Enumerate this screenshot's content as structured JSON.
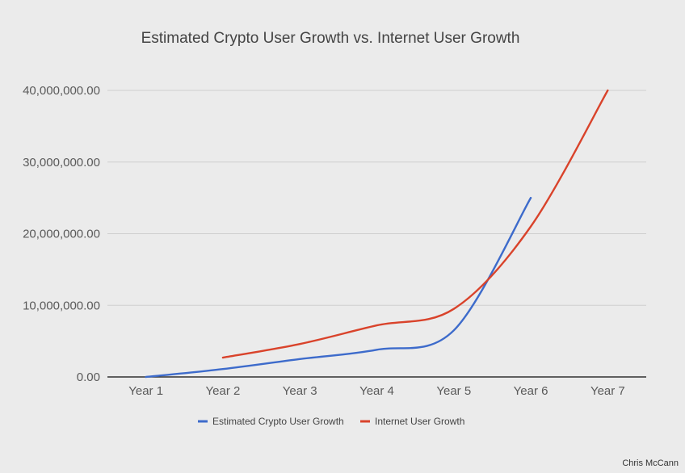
{
  "chart_data": {
    "type": "line",
    "title": "Estimated Crypto User Growth vs. Internet User Growth",
    "xlabel": "",
    "ylabel": "",
    "categories": [
      "Year 1",
      "Year 2",
      "Year 3",
      "Year 4",
      "Year 5",
      "Year 6",
      "Year 7"
    ],
    "y_tick_labels": [
      "0.00",
      "10,000,000.00",
      "20,000,000.00",
      "30,000,000.00",
      "40,000,000.00"
    ],
    "ylim": [
      0,
      40000000
    ],
    "grid": true,
    "legend_position": "bottom",
    "smooth": true,
    "series": [
      {
        "name": "Estimated Crypto User Growth",
        "color": "#3d6bcb",
        "values": [
          0,
          1100000,
          2500000,
          3800000,
          6500000,
          25000000,
          null
        ]
      },
      {
        "name": "Internet User Growth",
        "color": "#d9432b",
        "values": [
          null,
          2700000,
          4600000,
          7200000,
          9500000,
          21000000,
          40000000
        ]
      }
    ]
  },
  "credit": "Chris McCann"
}
